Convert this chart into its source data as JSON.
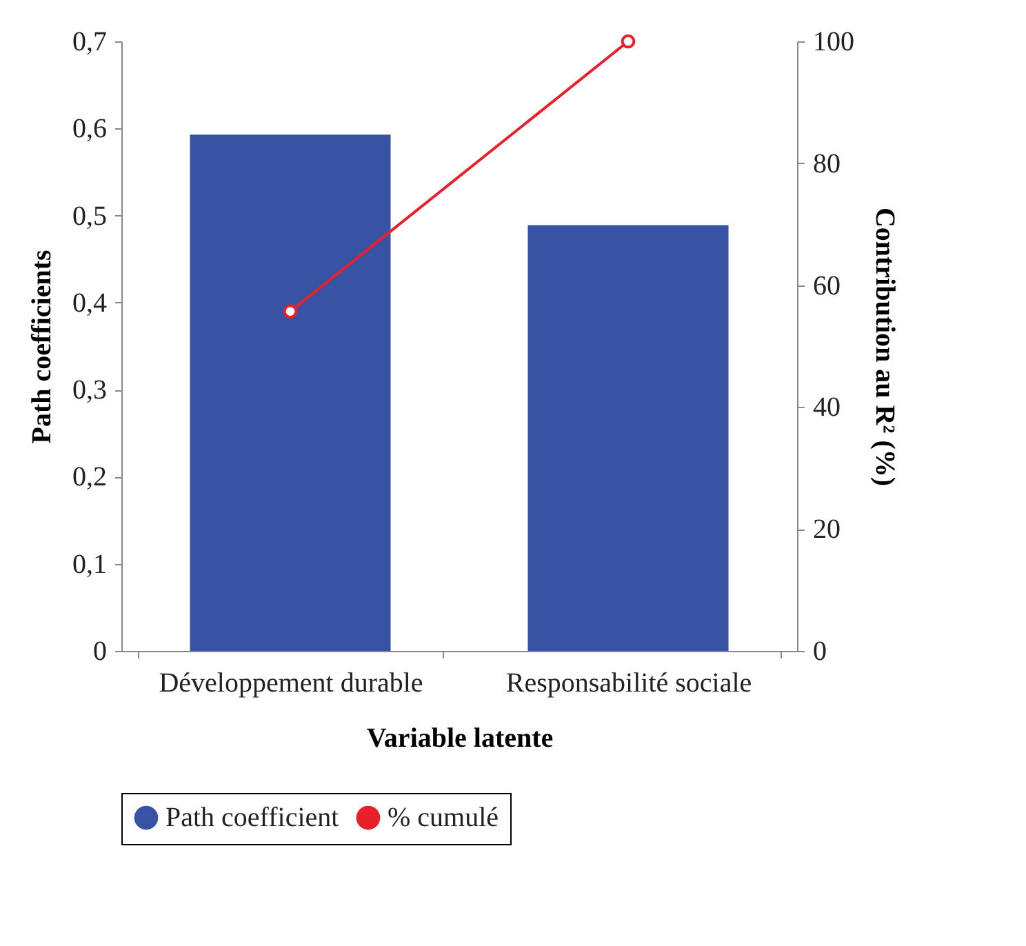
{
  "chart_data": {
    "type": "bar",
    "xlabel": "Variable latente",
    "ylabel": "Path coefficients",
    "y2label": "Contribution au R² (%)",
    "categories": [
      "Développement durable",
      "Responsabilité sociale"
    ],
    "series": [
      {
        "name": "Path coefficient",
        "color": "#3853a4",
        "values": [
          0.593,
          0.489
        ]
      },
      {
        "name": "% cumulé",
        "type": "line",
        "axis": "y2",
        "color": "#e8202a",
        "marker": "circle",
        "values": [
          55.7,
          100
        ]
      }
    ],
    "ylim": [
      0,
      0.7
    ],
    "yticks": [
      {
        "value": 0,
        "label": "0"
      },
      {
        "value": 0.1,
        "label": "0,1"
      },
      {
        "value": 0.2,
        "label": "0,2"
      },
      {
        "value": 0.3,
        "label": "0,3"
      },
      {
        "value": 0.4,
        "label": "0,4"
      },
      {
        "value": 0.5,
        "label": "0,5"
      },
      {
        "value": 0.6,
        "label": "0,6"
      },
      {
        "value": 0.7,
        "label": "0,7"
      }
    ],
    "y2lim": [
      0,
      100
    ],
    "y2ticks": [
      0,
      20,
      40,
      60,
      80,
      100
    ],
    "grid": false,
    "legend": "bottom"
  }
}
